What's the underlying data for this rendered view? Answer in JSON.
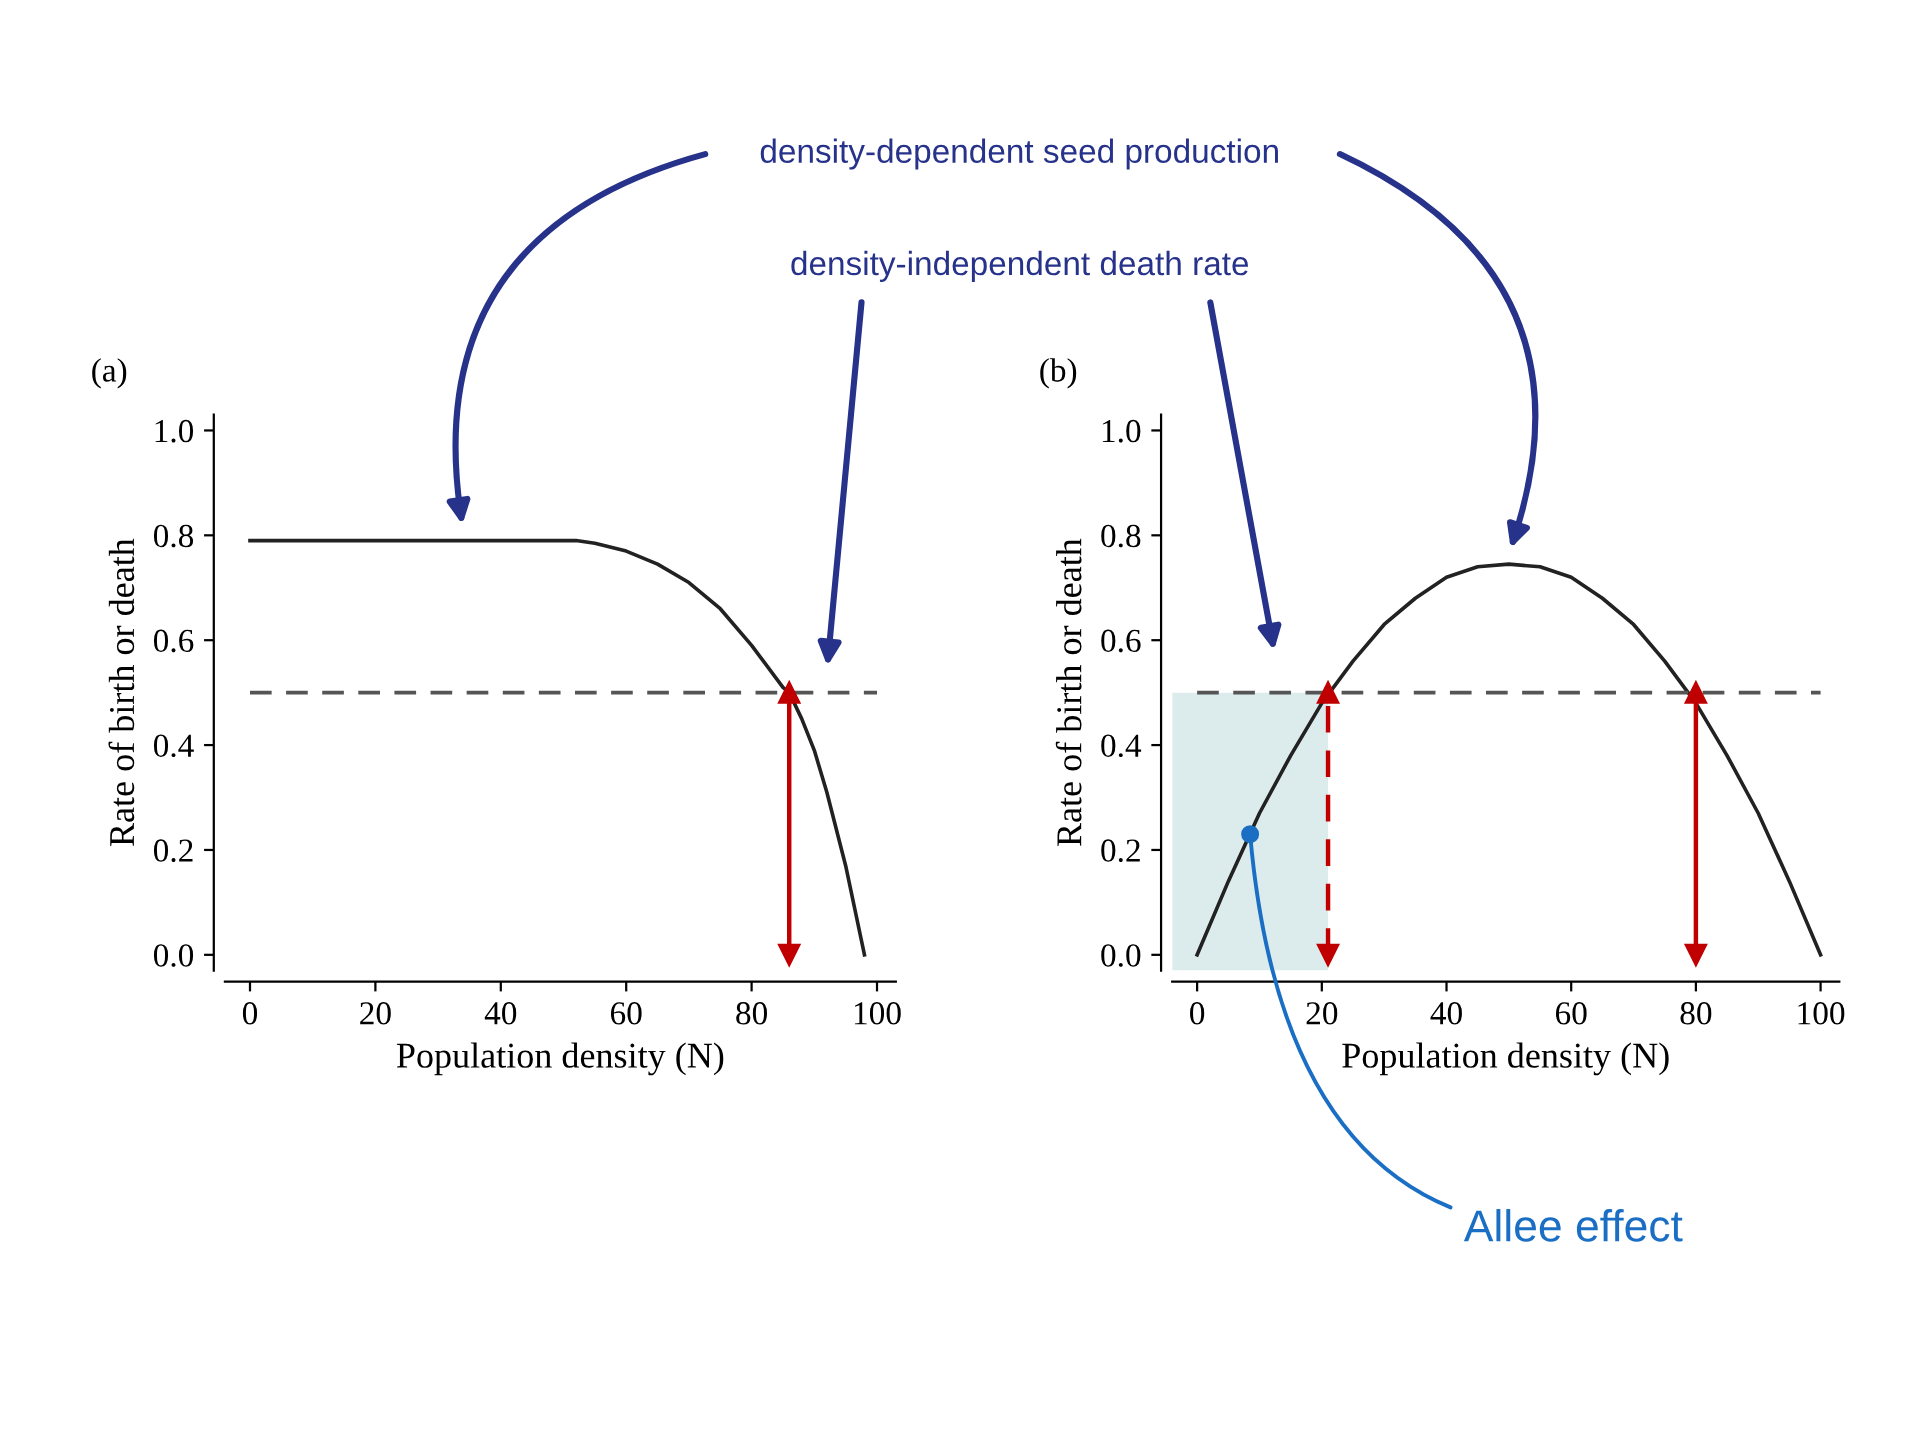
{
  "chart_data": [
    {
      "type": "line",
      "title": "(a)",
      "xlabel": "Population density (N)",
      "ylabel": "Rate of birth or death",
      "xlim": [
        -4,
        103
      ],
      "ylim": [
        -0.03,
        1.03
      ],
      "xticks": [
        0,
        20,
        40,
        60,
        80,
        100
      ],
      "yticks": [
        {
          "value": 0,
          "label": "0.0"
        },
        {
          "value": 0.2,
          "label": "0.2"
        },
        {
          "value": 0.4,
          "label": "0.4"
        },
        {
          "value": 0.6,
          "label": "0.6"
        },
        {
          "value": 0.8,
          "label": "0.8"
        },
        {
          "value": 1.0,
          "label": "1.0"
        }
      ],
      "grid": false,
      "series": [
        {
          "type": "line",
          "color": "#222222",
          "line_style": "solid",
          "x": [
            0,
            10,
            20,
            30,
            40,
            50,
            52,
            55,
            60,
            65,
            70,
            75,
            80,
            85,
            86,
            88,
            90,
            92,
            95,
            98
          ],
          "values": [
            0.79,
            0.79,
            0.79,
            0.79,
            0.79,
            0.79,
            0.79,
            0.785,
            0.77,
            0.745,
            0.71,
            0.66,
            0.59,
            0.51,
            0.5,
            0.45,
            0.39,
            0.31,
            0.17,
            0.0
          ]
        },
        {
          "type": "line",
          "color": "#555555",
          "line_style": "dashed",
          "x": [
            0,
            100
          ],
          "values": [
            0.5,
            0.5
          ]
        },
        {
          "color": "#c00000",
          "line_style": "solid",
          "marker": "triangle",
          "x": [
            86,
            86
          ],
          "values": [
            0.0,
            0.5
          ]
        }
      ],
      "annotations": [
        "density-dependent seed production",
        "density-independent death rate"
      ]
    },
    {
      "type": "line",
      "title": "(b)",
      "xlabel": "Population density (N)",
      "ylabel": "Rate of birth or death",
      "xlim": [
        -4,
        103
      ],
      "ylim": [
        -0.03,
        1.03
      ],
      "xticks": [
        0,
        20,
        40,
        60,
        80,
        100
      ],
      "yticks": [
        {
          "value": 0,
          "label": "0.0"
        },
        {
          "value": 0.2,
          "label": "0.2"
        },
        {
          "value": 0.4,
          "label": "0.4"
        },
        {
          "value": 0.6,
          "label": "0.6"
        },
        {
          "value": 0.8,
          "label": "0.8"
        },
        {
          "value": 1.0,
          "label": "1.0"
        }
      ],
      "grid": false,
      "bands": [
        {
          "axis": "x",
          "from": -4,
          "to": 21,
          "color": "#dcecec"
        }
      ],
      "series": [
        {
          "type": "line",
          "color": "#222222",
          "line_style": "solid",
          "x": [
            0,
            5,
            10,
            15,
            20,
            25,
            30,
            35,
            40,
            45,
            50,
            55,
            60,
            65,
            70,
            75,
            80,
            85,
            90,
            95,
            100
          ],
          "values": [
            0.0,
            0.14,
            0.27,
            0.38,
            0.48,
            0.56,
            0.63,
            0.68,
            0.72,
            0.74,
            0.745,
            0.74,
            0.72,
            0.68,
            0.63,
            0.56,
            0.48,
            0.38,
            0.27,
            0.14,
            0.0
          ]
        },
        {
          "type": "line",
          "color": "#555555",
          "line_style": "dashed",
          "x": [
            0,
            100
          ],
          "values": [
            0.5,
            0.5
          ]
        },
        {
          "color": "#c00000",
          "line_style": "dashed",
          "marker": "triangle",
          "x": [
            21,
            21
          ],
          "values": [
            0.0,
            0.5
          ]
        },
        {
          "color": "#c00000",
          "line_style": "solid",
          "marker": "triangle",
          "x": [
            80,
            80
          ],
          "values": [
            0.0,
            0.5
          ]
        },
        {
          "type": "scatter",
          "color": "#1a6fc4",
          "x": [
            8.5
          ],
          "values": [
            0.23
          ]
        }
      ],
      "annotations": [
        {
          "text": "Allee effect",
          "x": 8.5,
          "y": 0.23
        }
      ]
    }
  ]
}
